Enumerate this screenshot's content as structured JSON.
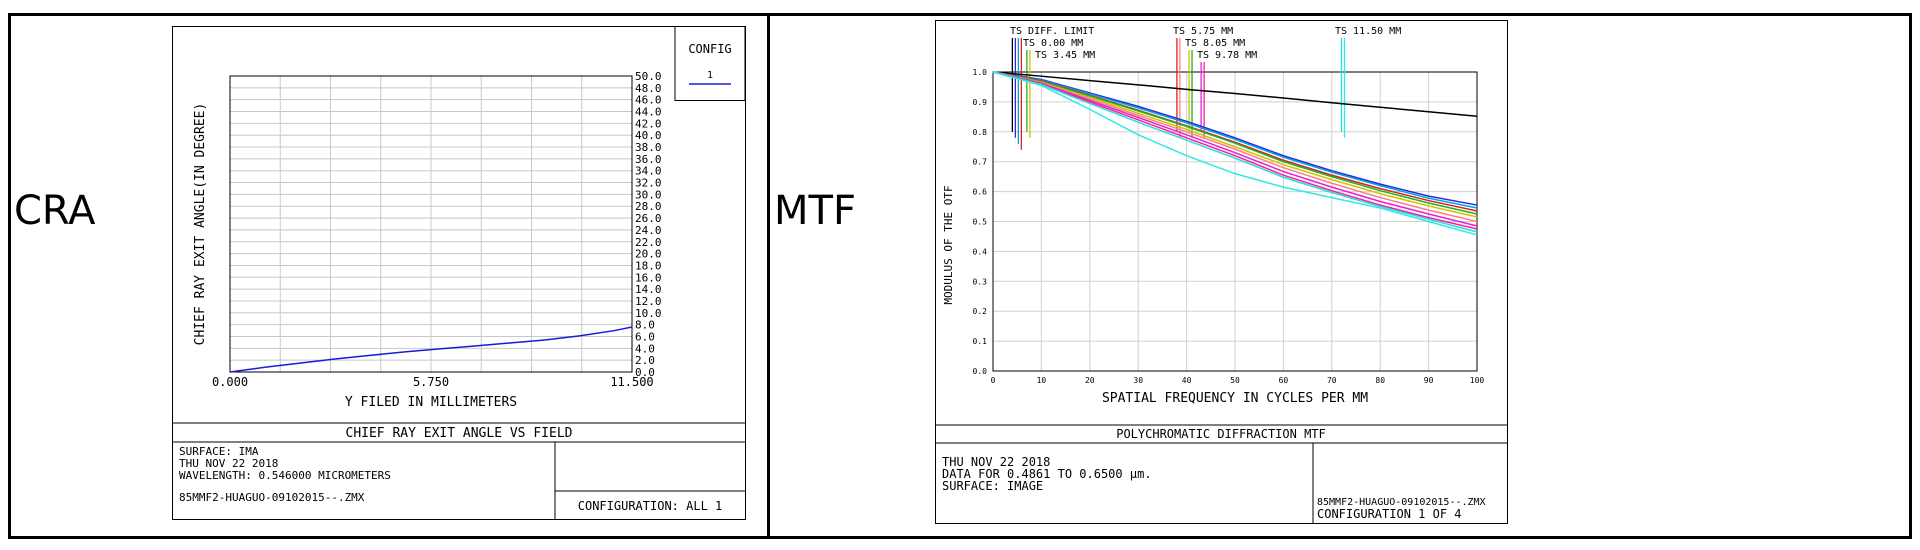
{
  "panels": {
    "left_label": "CRA",
    "right_label": "MTF"
  },
  "chart_data": [
    {
      "type": "line",
      "title": "CHIEF RAY EXIT ANGLE VS FIELD",
      "xlabel": "Y FILED IN MILLIMETERS",
      "ylabel": "CHIEF RAY EXIT ANGLE(IN DEGREE)",
      "xlim": [
        0,
        11.5
      ],
      "ylim": [
        0,
        50
      ],
      "x_ticks": [
        "0.000",
        "5.750",
        "11.500"
      ],
      "y_ticks": [
        "0.0",
        "2.0",
        "4.0",
        "6.0",
        "8.0",
        "10.0",
        "12.0",
        "14.0",
        "16.0",
        "18.0",
        "20.0",
        "22.0",
        "24.0",
        "26.0",
        "28.0",
        "30.0",
        "32.0",
        "34.0",
        "36.0",
        "38.0",
        "40.0",
        "42.0",
        "44.0",
        "46.0",
        "48.0",
        "50.0"
      ],
      "grid": true,
      "legend": {
        "title": "CONFIG",
        "entries": [
          "1"
        ],
        "position": "top-right"
      },
      "series": [
        {
          "color": "#1a1adb",
          "x": [
            0,
            1,
            2,
            3,
            4,
            5,
            6,
            7,
            8,
            9,
            10,
            11,
            11.5
          ],
          "y": [
            0,
            0.8,
            1.5,
            2.2,
            2.8,
            3.4,
            3.9,
            4.4,
            4.9,
            5.4,
            6.1,
            7.0,
            7.6
          ]
        }
      ],
      "info": {
        "surface": "SURFACE: IMA",
        "date": "THU NOV 22 2018",
        "wavelength": "WAVELENGTH: 0.546000 MICROMETERS",
        "file": "85MMF2-HUAGUO-09102015--.ZMX",
        "config": "CONFIGURATION: ALL 1"
      }
    },
    {
      "type": "line",
      "title": "POLYCHROMATIC DIFFRACTION MTF",
      "xlabel": "SPATIAL FREQUENCY IN CYCLES PER MM",
      "ylabel": "MODULUS OF THE OTF",
      "xlim": [
        0,
        100
      ],
      "ylim": [
        0,
        1.0
      ],
      "x_ticks": [
        "0",
        "10",
        "20",
        "30",
        "40",
        "50",
        "60",
        "70",
        "80",
        "90",
        "100"
      ],
      "y_ticks": [
        "0.0",
        "0.1",
        "0.2",
        "0.3",
        "0.4",
        "0.5",
        "0.6",
        "0.7",
        "0.8",
        "0.9",
        "1.0"
      ],
      "grid": true,
      "field_labels": [
        "TS DIFF. LIMIT",
        "TS 0.00 MM",
        "TS 3.45 MM",
        "TS 5.75 MM",
        "TS 8.05 MM",
        "TS 9.78 MM",
        "TS 11.50 MM"
      ],
      "x": [
        0,
        10,
        20,
        30,
        40,
        50,
        60,
        70,
        80,
        90,
        100
      ],
      "series": [
        {
          "color": "#000000",
          "y": [
            1.0,
            0.986,
            0.971,
            0.957,
            0.942,
            0.928,
            0.913,
            0.897,
            0.882,
            0.867,
            0.852
          ]
        },
        {
          "color": "#2030e0",
          "y": [
            1.0,
            0.975,
            0.93,
            0.885,
            0.835,
            0.78,
            0.72,
            0.67,
            0.625,
            0.585,
            0.555
          ]
        },
        {
          "color": "#00a0e0",
          "y": [
            1.0,
            0.973,
            0.927,
            0.88,
            0.83,
            0.775,
            0.715,
            0.665,
            0.62,
            0.578,
            0.545
          ]
        },
        {
          "color": "#e02020",
          "y": [
            1.0,
            0.97,
            0.922,
            0.872,
            0.82,
            0.765,
            0.705,
            0.655,
            0.61,
            0.57,
            0.535
          ]
        },
        {
          "color": "#20b020",
          "y": [
            1.0,
            0.968,
            0.92,
            0.87,
            0.818,
            0.762,
            0.7,
            0.65,
            0.603,
            0.562,
            0.525
          ]
        },
        {
          "color": "#d0c000",
          "y": [
            1.0,
            0.966,
            0.915,
            0.862,
            0.808,
            0.75,
            0.69,
            0.64,
            0.593,
            0.552,
            0.515
          ]
        },
        {
          "color": "#ff8080",
          "y": [
            1.0,
            0.964,
            0.91,
            0.855,
            0.8,
            0.742,
            0.68,
            0.628,
            0.58,
            0.538,
            0.5
          ]
        },
        {
          "color": "#e020e0",
          "y": [
            1.0,
            0.962,
            0.905,
            0.848,
            0.79,
            0.73,
            0.667,
            0.615,
            0.567,
            0.525,
            0.485
          ]
        },
        {
          "color": "#ff2090",
          "y": [
            1.0,
            0.96,
            0.9,
            0.84,
            0.78,
            0.72,
            0.655,
            0.603,
            0.555,
            0.513,
            0.475
          ]
        },
        {
          "color": "#20e0e0",
          "y": [
            1.0,
            0.958,
            0.895,
            0.832,
            0.772,
            0.712,
            0.648,
            0.597,
            0.55,
            0.508,
            0.465
          ]
        },
        {
          "color": "#30e8e8",
          "y": [
            1.0,
            0.955,
            0.875,
            0.79,
            0.72,
            0.66,
            0.615,
            0.58,
            0.545,
            0.5,
            0.455
          ]
        }
      ],
      "info": {
        "date": "THU NOV 22 2018",
        "data_range": "DATA FOR 0.4861 TO 0.6500 µm.",
        "surface": "SURFACE: IMAGE",
        "file": "85MMF2-HUAGUO-09102015--.ZMX",
        "config": "CONFIGURATION 1 OF 4"
      }
    }
  ]
}
